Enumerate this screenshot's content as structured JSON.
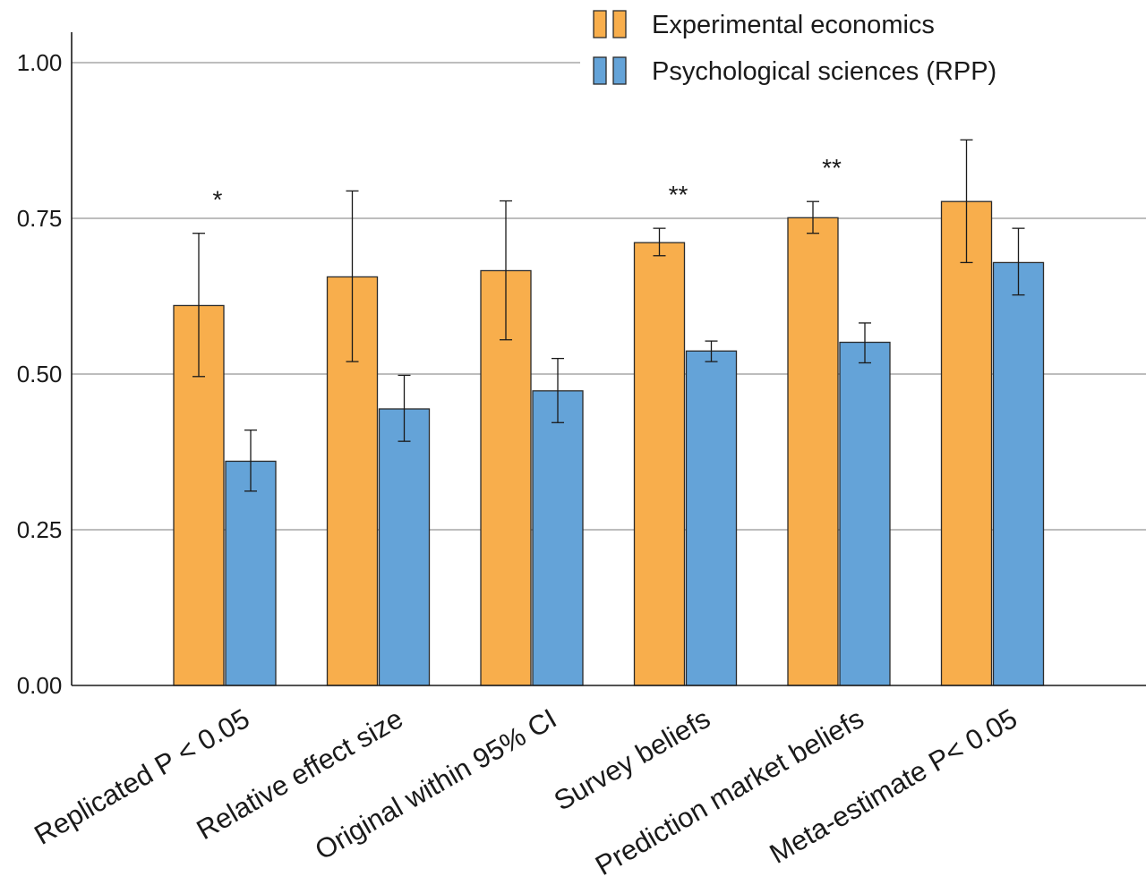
{
  "chart_data": {
    "type": "bar",
    "categories": [
      "Replicated P < 0.05",
      "Relative effect size",
      "Original within 95% CI",
      "Survey beliefs",
      "Prediction market beliefs",
      "Meta-estimate P< 0.05"
    ],
    "series": [
      {
        "name": "Experimental economics",
        "color": "#F8AE4C",
        "values": [
          0.61,
          0.656,
          0.666,
          0.711,
          0.751,
          0.777
        ],
        "error_low": [
          0.496,
          0.52,
          0.555,
          0.69,
          0.726,
          0.679
        ],
        "error_high": [
          0.726,
          0.794,
          0.778,
          0.734,
          0.777,
          0.876
        ]
      },
      {
        "name": "Psychological sciences (RPP)",
        "color": "#64A3D8",
        "values": [
          0.36,
          0.444,
          0.473,
          0.537,
          0.551,
          0.679
        ],
        "error_low": [
          0.312,
          0.392,
          0.422,
          0.52,
          0.518,
          0.627
        ],
        "error_high": [
          0.41,
          0.498,
          0.525,
          0.553,
          0.582,
          0.734
        ]
      }
    ],
    "significance": [
      "*",
      "",
      "",
      "**",
      "**",
      ""
    ],
    "yticks": [
      "0.00",
      "0.25",
      "0.50",
      "0.75",
      "1.00"
    ],
    "ylim": [
      0,
      1.05
    ],
    "grid": true,
    "legend_position": "top-right",
    "xlabel": "",
    "ylabel": "",
    "title": ""
  }
}
